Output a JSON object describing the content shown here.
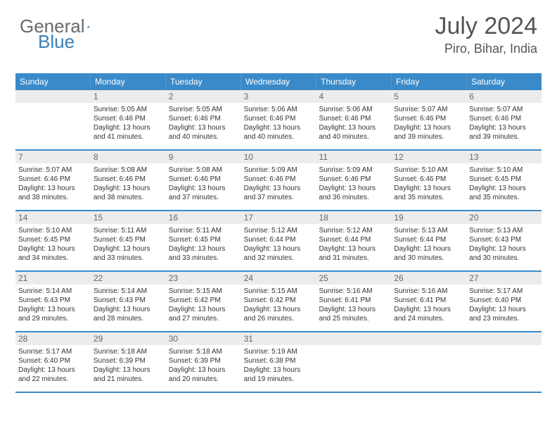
{
  "logo": {
    "text1": "General",
    "text2": "Blue",
    "accent_color": "#2676b8"
  },
  "header": {
    "month": "July 2024",
    "location": "Piro, Bihar, India"
  },
  "colors": {
    "header_bg": "#3a8ac9",
    "header_text": "#ffffff",
    "daynum_bg": "#ececec",
    "daynum_text": "#666666",
    "body_text": "#333333",
    "row_border": "#3a8ac9"
  },
  "dayNames": [
    "Sunday",
    "Monday",
    "Tuesday",
    "Wednesday",
    "Thursday",
    "Friday",
    "Saturday"
  ],
  "weeks": [
    [
      {
        "n": "",
        "empty": true
      },
      {
        "n": "1",
        "sr": "Sunrise: 5:05 AM",
        "ss": "Sunset: 6:46 PM",
        "dl": "Daylight: 13 hours and 41 minutes."
      },
      {
        "n": "2",
        "sr": "Sunrise: 5:05 AM",
        "ss": "Sunset: 6:46 PM",
        "dl": "Daylight: 13 hours and 40 minutes."
      },
      {
        "n": "3",
        "sr": "Sunrise: 5:06 AM",
        "ss": "Sunset: 6:46 PM",
        "dl": "Daylight: 13 hours and 40 minutes."
      },
      {
        "n": "4",
        "sr": "Sunrise: 5:06 AM",
        "ss": "Sunset: 6:46 PM",
        "dl": "Daylight: 13 hours and 40 minutes."
      },
      {
        "n": "5",
        "sr": "Sunrise: 5:07 AM",
        "ss": "Sunset: 6:46 PM",
        "dl": "Daylight: 13 hours and 39 minutes."
      },
      {
        "n": "6",
        "sr": "Sunrise: 5:07 AM",
        "ss": "Sunset: 6:46 PM",
        "dl": "Daylight: 13 hours and 39 minutes."
      }
    ],
    [
      {
        "n": "7",
        "sr": "Sunrise: 5:07 AM",
        "ss": "Sunset: 6:46 PM",
        "dl": "Daylight: 13 hours and 38 minutes."
      },
      {
        "n": "8",
        "sr": "Sunrise: 5:08 AM",
        "ss": "Sunset: 6:46 PM",
        "dl": "Daylight: 13 hours and 38 minutes."
      },
      {
        "n": "9",
        "sr": "Sunrise: 5:08 AM",
        "ss": "Sunset: 6:46 PM",
        "dl": "Daylight: 13 hours and 37 minutes."
      },
      {
        "n": "10",
        "sr": "Sunrise: 5:09 AM",
        "ss": "Sunset: 6:46 PM",
        "dl": "Daylight: 13 hours and 37 minutes."
      },
      {
        "n": "11",
        "sr": "Sunrise: 5:09 AM",
        "ss": "Sunset: 6:46 PM",
        "dl": "Daylight: 13 hours and 36 minutes."
      },
      {
        "n": "12",
        "sr": "Sunrise: 5:10 AM",
        "ss": "Sunset: 6:46 PM",
        "dl": "Daylight: 13 hours and 35 minutes."
      },
      {
        "n": "13",
        "sr": "Sunrise: 5:10 AM",
        "ss": "Sunset: 6:45 PM",
        "dl": "Daylight: 13 hours and 35 minutes."
      }
    ],
    [
      {
        "n": "14",
        "sr": "Sunrise: 5:10 AM",
        "ss": "Sunset: 6:45 PM",
        "dl": "Daylight: 13 hours and 34 minutes."
      },
      {
        "n": "15",
        "sr": "Sunrise: 5:11 AM",
        "ss": "Sunset: 6:45 PM",
        "dl": "Daylight: 13 hours and 33 minutes."
      },
      {
        "n": "16",
        "sr": "Sunrise: 5:11 AM",
        "ss": "Sunset: 6:45 PM",
        "dl": "Daylight: 13 hours and 33 minutes."
      },
      {
        "n": "17",
        "sr": "Sunrise: 5:12 AM",
        "ss": "Sunset: 6:44 PM",
        "dl": "Daylight: 13 hours and 32 minutes."
      },
      {
        "n": "18",
        "sr": "Sunrise: 5:12 AM",
        "ss": "Sunset: 6:44 PM",
        "dl": "Daylight: 13 hours and 31 minutes."
      },
      {
        "n": "19",
        "sr": "Sunrise: 5:13 AM",
        "ss": "Sunset: 6:44 PM",
        "dl": "Daylight: 13 hours and 30 minutes."
      },
      {
        "n": "20",
        "sr": "Sunrise: 5:13 AM",
        "ss": "Sunset: 6:43 PM",
        "dl": "Daylight: 13 hours and 30 minutes."
      }
    ],
    [
      {
        "n": "21",
        "sr": "Sunrise: 5:14 AM",
        "ss": "Sunset: 6:43 PM",
        "dl": "Daylight: 13 hours and 29 minutes."
      },
      {
        "n": "22",
        "sr": "Sunrise: 5:14 AM",
        "ss": "Sunset: 6:43 PM",
        "dl": "Daylight: 13 hours and 28 minutes."
      },
      {
        "n": "23",
        "sr": "Sunrise: 5:15 AM",
        "ss": "Sunset: 6:42 PM",
        "dl": "Daylight: 13 hours and 27 minutes."
      },
      {
        "n": "24",
        "sr": "Sunrise: 5:15 AM",
        "ss": "Sunset: 6:42 PM",
        "dl": "Daylight: 13 hours and 26 minutes."
      },
      {
        "n": "25",
        "sr": "Sunrise: 5:16 AM",
        "ss": "Sunset: 6:41 PM",
        "dl": "Daylight: 13 hours and 25 minutes."
      },
      {
        "n": "26",
        "sr": "Sunrise: 5:16 AM",
        "ss": "Sunset: 6:41 PM",
        "dl": "Daylight: 13 hours and 24 minutes."
      },
      {
        "n": "27",
        "sr": "Sunrise: 5:17 AM",
        "ss": "Sunset: 6:40 PM",
        "dl": "Daylight: 13 hours and 23 minutes."
      }
    ],
    [
      {
        "n": "28",
        "sr": "Sunrise: 5:17 AM",
        "ss": "Sunset: 6:40 PM",
        "dl": "Daylight: 13 hours and 22 minutes."
      },
      {
        "n": "29",
        "sr": "Sunrise: 5:18 AM",
        "ss": "Sunset: 6:39 PM",
        "dl": "Daylight: 13 hours and 21 minutes."
      },
      {
        "n": "30",
        "sr": "Sunrise: 5:18 AM",
        "ss": "Sunset: 6:39 PM",
        "dl": "Daylight: 13 hours and 20 minutes."
      },
      {
        "n": "31",
        "sr": "Sunrise: 5:19 AM",
        "ss": "Sunset: 6:38 PM",
        "dl": "Daylight: 13 hours and 19 minutes."
      },
      {
        "n": "",
        "empty": true
      },
      {
        "n": "",
        "empty": true
      },
      {
        "n": "",
        "empty": true
      }
    ]
  ]
}
